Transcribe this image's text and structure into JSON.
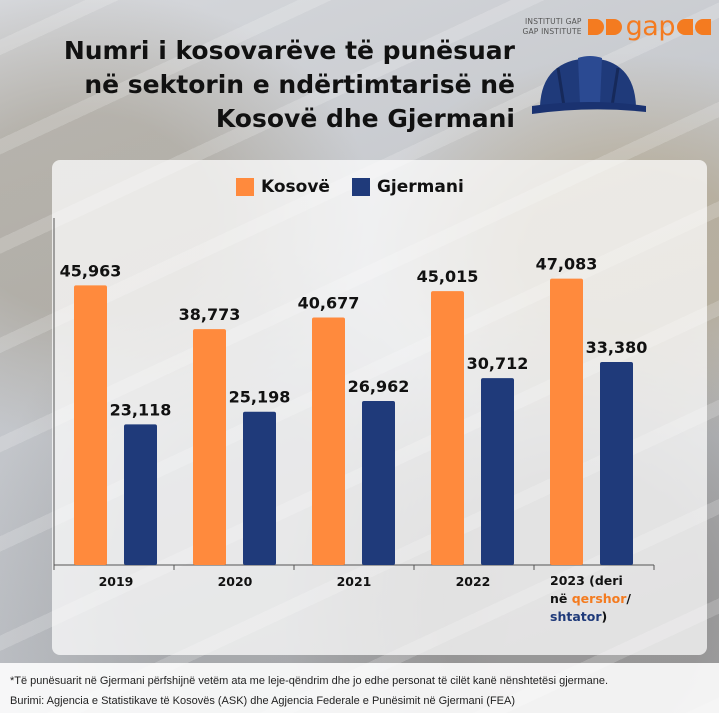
{
  "brand": {
    "line1": "INSTITUTI GAP",
    "line2": "GAP INSTITUTE",
    "wordmark": "gap",
    "accent": "#f47b20"
  },
  "title_lines": [
    "Numri i kosovarëve të punësuar",
    "në sektorin e ndërtimtarisë në",
    "Kosovë dhe Gjermani"
  ],
  "legend": [
    {
      "label": "Kosovë",
      "color": "#ff8a3d"
    },
    {
      "label": "Gjermani",
      "color": "#1f3a7a"
    }
  ],
  "chart_data": {
    "type": "bar",
    "categories": [
      "2019",
      "2020",
      "2021",
      "2022",
      "2023 (deri në qershor/ shtator)"
    ],
    "series": [
      {
        "name": "Kosovë",
        "values": [
          45963,
          38773,
          40677,
          45015,
          47083
        ],
        "color": "#ff8a3d"
      },
      {
        "name": "Gjermani",
        "values": [
          23118,
          25198,
          26962,
          30712,
          33380
        ],
        "color": "#1f3a7a"
      }
    ],
    "data_labels": {
      "Kosovë": [
        "45,963",
        "38,773",
        "40,677",
        "45,015",
        "47,083"
      ],
      "Gjermani": [
        "23,118",
        "25,198",
        "26,962",
        "30,712",
        "33,380"
      ]
    },
    "ylim": [
      0,
      60000
    ],
    "grid": false,
    "legend_position": "top"
  },
  "x_labels": {
    "simple": [
      "2019",
      "2020",
      "2021",
      "2022"
    ],
    "last": {
      "part1": "2023 (deri",
      "part2": "në ",
      "part2_highlight": "qershor",
      "part2_after": "/",
      "part3_highlight": "shtator",
      "part3_after": ")"
    }
  },
  "footnote": "*Të punësuarit në Gjermani përfshijnë vetëm ata me leje-qëndrim dhe jo edhe personat të cilët kanë nënshtetësi gjermane.",
  "source": "Burimi: Agjencia e Statistikave të Kosovës (ASK) dhe Agjencia Federale e Punësimit në Gjermani (FEA)"
}
